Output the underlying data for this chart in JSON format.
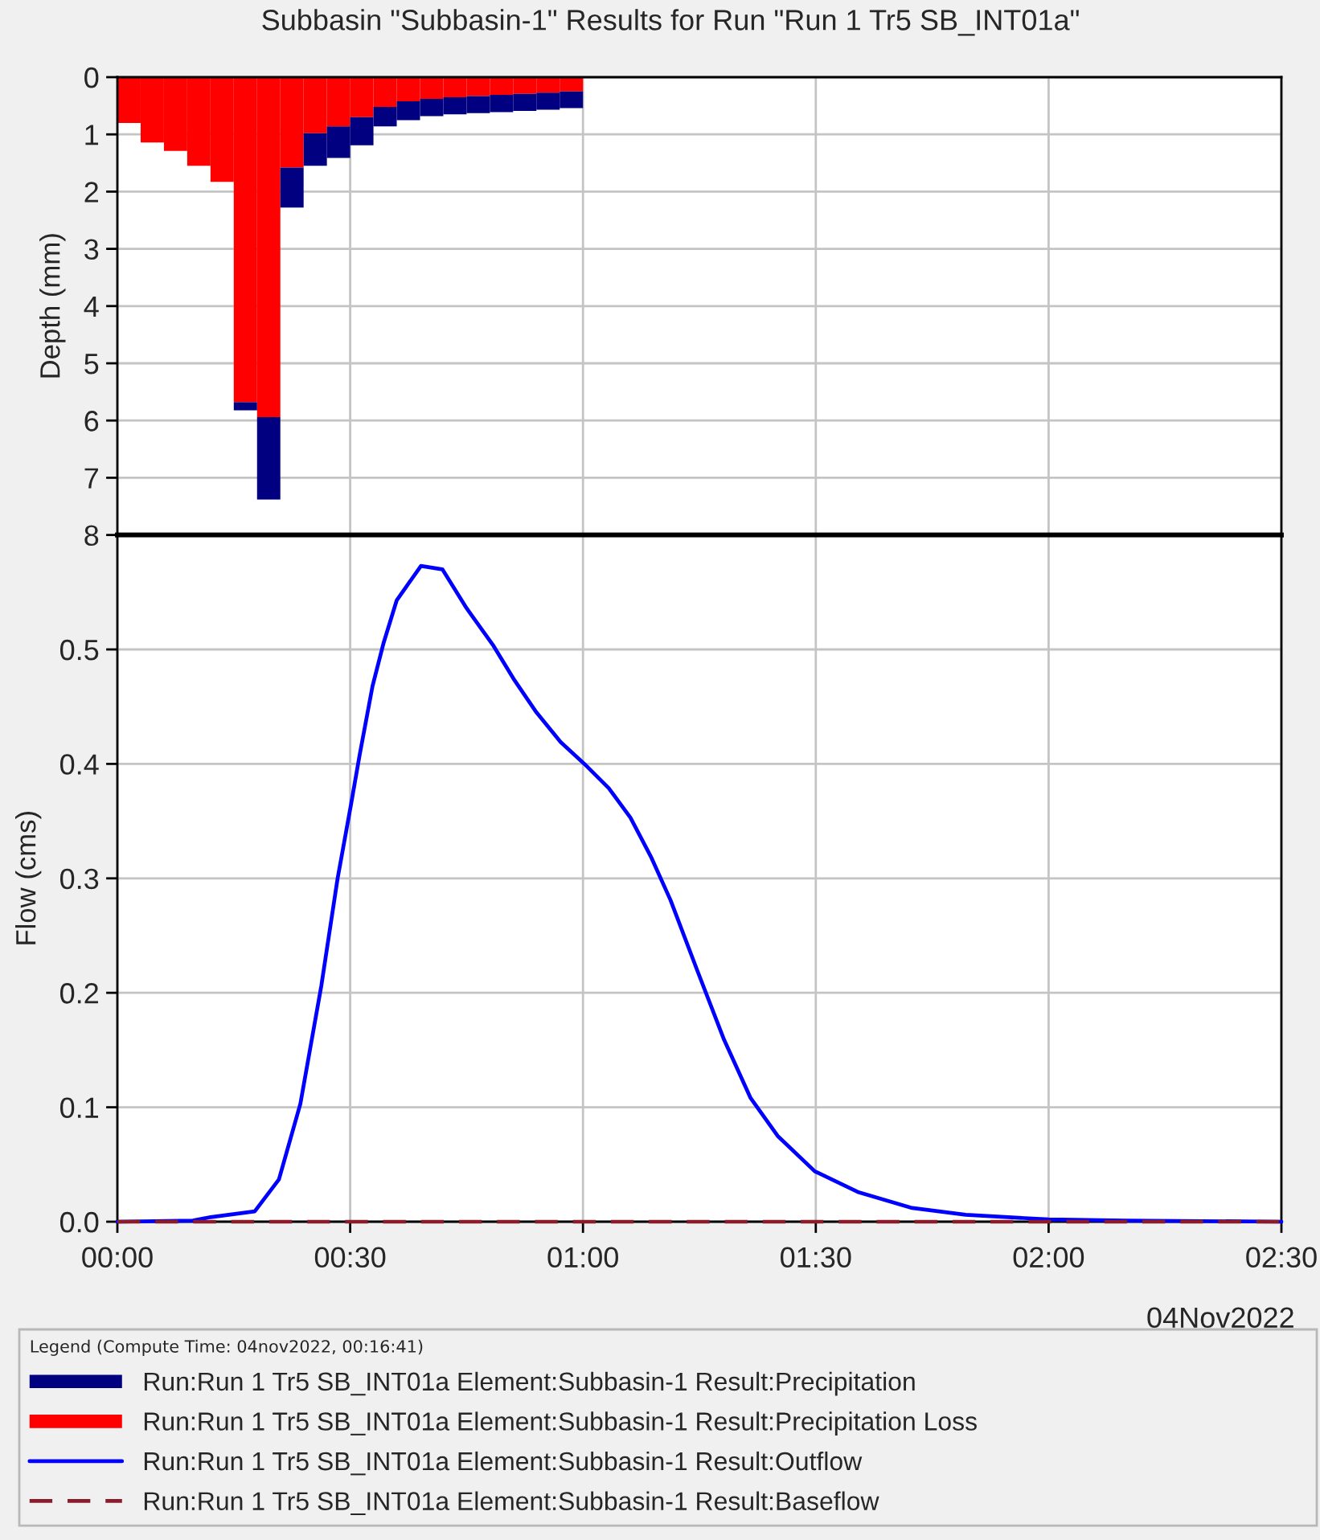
{
  "chart_data": [
    {
      "type": "bar",
      "title": "Subbasin \"Subbasin-1\" Results for Run \"Run 1 Tr5 SB_INT01a\"",
      "ylabel": "Depth (mm)",
      "stacked": true,
      "x": [
        0.025,
        0.075,
        0.125,
        0.175,
        0.225,
        0.275,
        0.325,
        0.375,
        0.425,
        0.475,
        0.525,
        0.575,
        0.625,
        0.675,
        0.725,
        0.775,
        0.825,
        0.875,
        0.925,
        0.975
      ],
      "series": [
        {
          "name": "Run:Run 1 Tr5 SB_INT01a Element:Subbasin-1 Result:Precipitation Loss",
          "color": "#ff0000",
          "values": [
            0.8,
            1.14,
            1.29,
            1.55,
            1.83,
            5.68,
            5.94,
            1.58,
            0.98,
            0.86,
            0.7,
            0.52,
            0.42,
            0.38,
            0.35,
            0.33,
            0.31,
            0.29,
            0.27,
            0.25
          ]
        },
        {
          "name": "Run:Run 1 Tr5 SB_INT01a Element:Subbasin-1 Result:Precipitation",
          "color": "#000080",
          "values": [
            0,
            0,
            0,
            0,
            0,
            0.14,
            1.44,
            0.7,
            0.57,
            0.55,
            0.49,
            0.34,
            0.33,
            0.3,
            0.3,
            0.3,
            0.3,
            0.3,
            0.3,
            0.29
          ]
        }
      ],
      "xlim": [
        0,
        2.5
      ],
      "xticks": [
        0,
        0.5,
        1,
        1.5,
        2,
        2.5
      ],
      "ylim": [
        8,
        0
      ],
      "yticks": [
        0,
        1,
        2,
        3,
        4,
        5,
        6,
        7,
        8
      ],
      "grid": true,
      "tick_labels": "y",
      "legend": "bottom"
    },
    {
      "type": "line",
      "ylabel": "Flow (cms)",
      "legend_title": "Legend (Compute Time: 04nov2022, 00:16:41)",
      "annotations": [
        "04Nov2022"
      ],
      "series": [
        {
          "name": "Run:Run 1 Tr5 SB_INT01a Element:Subbasin-1 Result:Outflow",
          "color": "#0000ff",
          "line_style": "solid",
          "x": [
            0,
            0.162,
            0.2,
            0.295,
            0.347,
            0.393,
            0.438,
            0.473,
            0.502,
            0.52,
            0.548,
            0.572,
            0.6,
            0.652,
            0.698,
            0.75,
            0.808,
            0.853,
            0.9,
            0.952,
            1.003,
            1.055,
            1.102,
            1.147,
            1.188,
            1.245,
            1.303,
            1.36,
            1.418,
            1.498,
            1.59,
            1.707,
            1.822,
            2.0,
            2.167,
            2.5
          ],
          "values": [
            0.0,
            0.001,
            0.004,
            0.009,
            0.037,
            0.103,
            0.206,
            0.3,
            0.365,
            0.407,
            0.468,
            0.506,
            0.543,
            0.573,
            0.57,
            0.536,
            0.503,
            0.473,
            0.445,
            0.419,
            0.4,
            0.379,
            0.353,
            0.318,
            0.281,
            0.22,
            0.159,
            0.108,
            0.075,
            0.044,
            0.026,
            0.012,
            0.006,
            0.002,
            0.001,
            0.0
          ]
        },
        {
          "name": "Run:Run 1 Tr5 SB_INT01a Element:Subbasin-1 Result:Baseflow",
          "color": "#8b1c2c",
          "line_style": "dashed",
          "x": [
            0,
            2.5
          ],
          "values": [
            0,
            0
          ]
        }
      ],
      "xlim": [
        0,
        2.5
      ],
      "xticks": [
        {
          "value": 0,
          "label": "00:00"
        },
        {
          "value": 0.5,
          "label": "00:30"
        },
        {
          "value": 1,
          "label": "01:00"
        },
        {
          "value": 1.5,
          "label": "01:30"
        },
        {
          "value": 2,
          "label": "02:00"
        },
        {
          "value": 2.5,
          "label": "02:30"
        }
      ],
      "ylim": [
        0,
        0.6
      ],
      "yticks": [
        {
          "value": 0,
          "label": "0.0"
        },
        0.1,
        0.2,
        0.3,
        0.4,
        0.5
      ],
      "grid": true,
      "legend": "bottom"
    }
  ]
}
